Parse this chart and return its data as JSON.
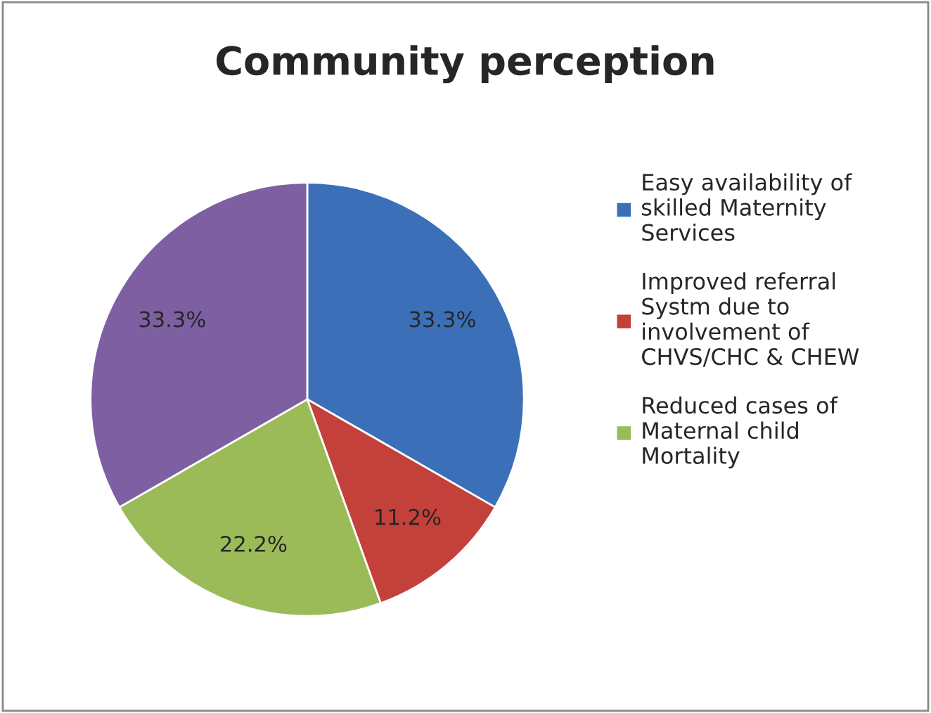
{
  "chart_data": {
    "type": "pie",
    "title": "Community perception",
    "categories": [
      "Easy availability of skilled Maternity Services",
      "Improved referral Systm due to involvement of CHVS/CHC & CHEW",
      "Reduced cases of Maternal child Mortality",
      null
    ],
    "values": [
      33.3,
      11.2,
      22.2,
      33.3
    ],
    "colors": [
      "#3b70b9",
      "#c4403b",
      "#9bbb59",
      "#7e60a2"
    ],
    "value_labels": [
      "33.3%",
      "11.2%",
      "22.2%",
      "33.3%"
    ],
    "legend": "right"
  }
}
